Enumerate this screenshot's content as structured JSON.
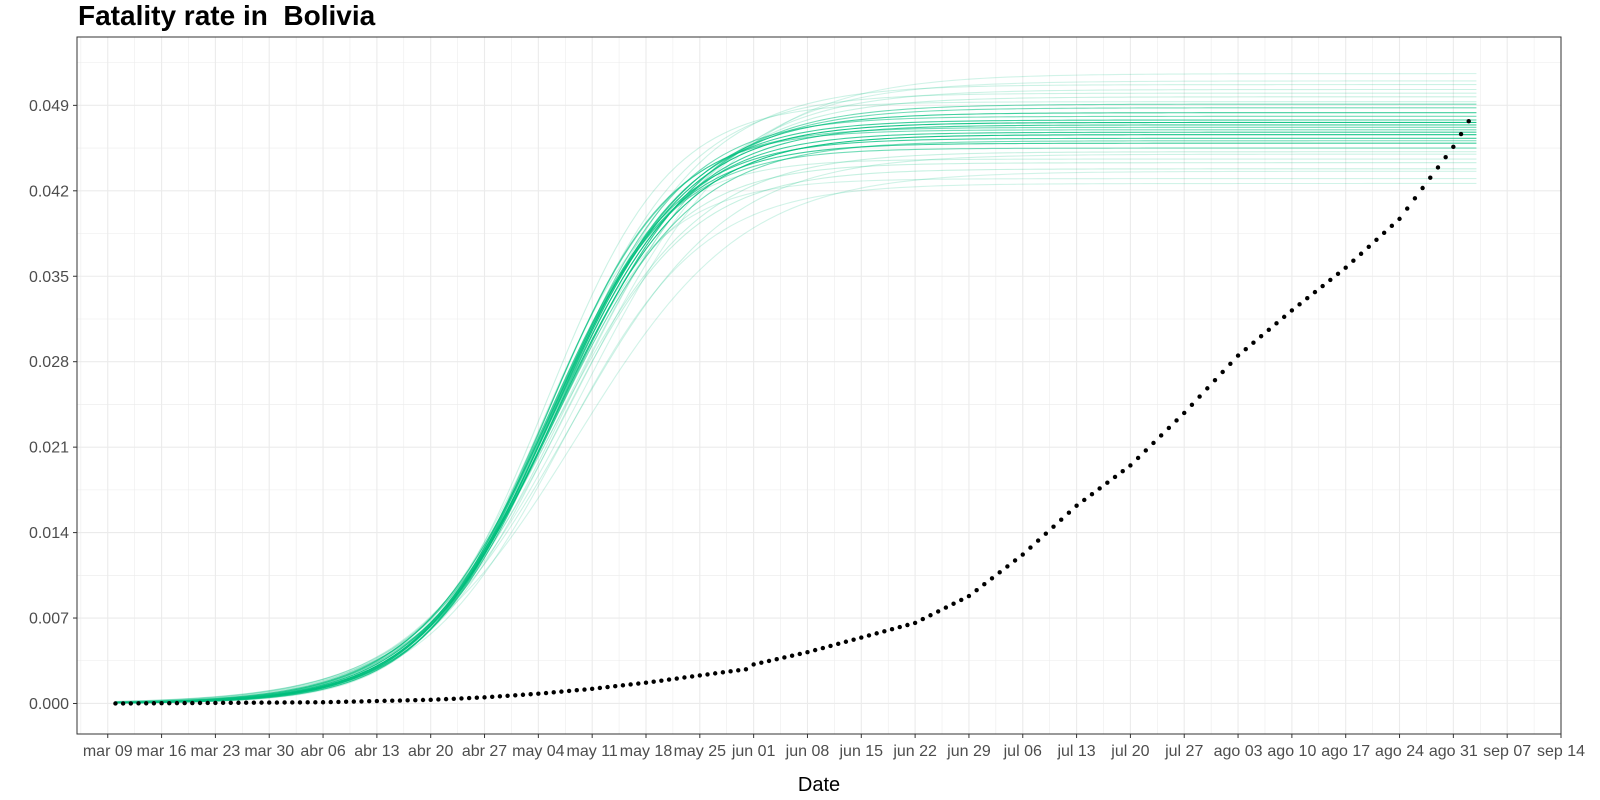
{
  "chart_data": {
    "type": "line",
    "title": "Fatality rate in  Bolivia",
    "xlabel": "Date",
    "ylabel": "",
    "x_axis": {
      "type": "date",
      "range": [
        "2020-03-05",
        "2020-09-14"
      ],
      "tick_dates": [
        "2020-03-09",
        "2020-03-16",
        "2020-03-23",
        "2020-03-30",
        "2020-04-06",
        "2020-04-13",
        "2020-04-20",
        "2020-04-27",
        "2020-05-04",
        "2020-05-11",
        "2020-05-18",
        "2020-05-25",
        "2020-06-01",
        "2020-06-08",
        "2020-06-15",
        "2020-06-22",
        "2020-06-29",
        "2020-07-06",
        "2020-07-13",
        "2020-07-20",
        "2020-07-27",
        "2020-08-03",
        "2020-08-10",
        "2020-08-17",
        "2020-08-24",
        "2020-08-31",
        "2020-09-07",
        "2020-09-14"
      ],
      "tick_labels": [
        "mar 09",
        "mar 16",
        "mar 23",
        "mar 30",
        "abr 06",
        "abr 13",
        "abr 20",
        "abr 27",
        "may 04",
        "may 11",
        "may 18",
        "may 25",
        "jun 01",
        "jun 08",
        "jun 15",
        "jun 22",
        "jun 29",
        "jul 06",
        "jul 13",
        "jul 20",
        "jul 27",
        "ago 03",
        "ago 10",
        "ago 17",
        "ago 24",
        "ago 31",
        "sep 07",
        "sep 14"
      ]
    },
    "y_axis": {
      "range": [
        -0.0025,
        0.0546
      ],
      "ticks": [
        0.0,
        0.007,
        0.014,
        0.021,
        0.028,
        0.035,
        0.042,
        0.049
      ],
      "tick_labels": [
        "0.000",
        "0.007",
        "0.014",
        "0.021",
        "0.028",
        "0.035",
        "0.042",
        "0.049"
      ]
    },
    "grid": true,
    "legend": "none",
    "colors": {
      "model": "#00BF7D",
      "observed": "#000000",
      "grid": "#ebebeb",
      "panel_border": "#333333"
    },
    "model_curves": {
      "description_type": "logistic",
      "start": "2020-03-10",
      "end": "2020-09-03",
      "curves": [
        {
          "asymptote": 0.0478,
          "midpoint": "2020-05-06",
          "scale": 8.5,
          "opacity": 0.75
        },
        {
          "asymptote": 0.0474,
          "midpoint": "2020-05-06",
          "scale": 8.8,
          "opacity": 0.75
        },
        {
          "asymptote": 0.0468,
          "midpoint": "2020-05-06",
          "scale": 8.4,
          "opacity": 0.75
        },
        {
          "asymptote": 0.0463,
          "midpoint": "2020-05-05",
          "scale": 8.3,
          "opacity": 0.75
        },
        {
          "asymptote": 0.0459,
          "midpoint": "2020-05-05",
          "scale": 8.2,
          "opacity": 0.75
        },
        {
          "asymptote": 0.0484,
          "midpoint": "2020-05-06",
          "scale": 9.0,
          "opacity": 0.75
        },
        {
          "asymptote": 0.0488,
          "midpoint": "2020-05-07",
          "scale": 9.2,
          "opacity": 0.55
        },
        {
          "asymptote": 0.0491,
          "midpoint": "2020-05-07",
          "scale": 9.4,
          "opacity": 0.55
        },
        {
          "asymptote": 0.047,
          "midpoint": "2020-05-05",
          "scale": 7.9,
          "opacity": 0.55
        },
        {
          "asymptote": 0.0455,
          "midpoint": "2020-05-05",
          "scale": 8.0,
          "opacity": 0.55
        },
        {
          "asymptote": 0.0476,
          "midpoint": "2020-05-06",
          "scale": 8.6,
          "opacity": 0.9
        },
        {
          "asymptote": 0.0466,
          "midpoint": "2020-05-06",
          "scale": 8.7,
          "opacity": 0.9
        },
        {
          "asymptote": 0.0481,
          "midpoint": "2020-05-06",
          "scale": 8.3,
          "opacity": 0.55
        },
        {
          "asymptote": 0.0461,
          "midpoint": "2020-05-06",
          "scale": 8.9,
          "opacity": 0.55
        },
        {
          "asymptote": 0.0472,
          "midpoint": "2020-05-05",
          "scale": 8.1,
          "opacity": 0.55
        },
        {
          "asymptote": 0.0443,
          "midpoint": "2020-05-05",
          "scale": 8.3,
          "opacity": 0.22
        },
        {
          "asymptote": 0.0438,
          "midpoint": "2020-05-06",
          "scale": 8.7,
          "opacity": 0.22
        },
        {
          "asymptote": 0.043,
          "midpoint": "2020-05-04",
          "scale": 7.8,
          "opacity": 0.18
        },
        {
          "asymptote": 0.0426,
          "midpoint": "2020-05-07",
          "scale": 9.1,
          "opacity": 0.18
        },
        {
          "asymptote": 0.0497,
          "midpoint": "2020-05-08",
          "scale": 9.6,
          "opacity": 0.22
        },
        {
          "asymptote": 0.0503,
          "midpoint": "2020-05-08",
          "scale": 10.0,
          "opacity": 0.2
        },
        {
          "asymptote": 0.051,
          "midpoint": "2020-05-09",
          "scale": 10.3,
          "opacity": 0.18
        },
        {
          "asymptote": 0.0516,
          "midpoint": "2020-05-10",
          "scale": 10.6,
          "opacity": 0.18
        },
        {
          "asymptote": 0.0507,
          "midpoint": "2020-05-07",
          "scale": 9.3,
          "opacity": 0.2
        },
        {
          "asymptote": 0.045,
          "midpoint": "2020-05-08",
          "scale": 10.2,
          "opacity": 0.2
        },
        {
          "asymptote": 0.0446,
          "midpoint": "2020-05-04",
          "scale": 7.6,
          "opacity": 0.2
        },
        {
          "asymptote": 0.0493,
          "midpoint": "2020-05-05",
          "scale": 8.0,
          "opacity": 0.2
        },
        {
          "asymptote": 0.0436,
          "midpoint": "2020-05-09",
          "scale": 10.8,
          "opacity": 0.18
        },
        {
          "asymptote": 0.05,
          "midpoint": "2020-05-06",
          "scale": 8.8,
          "opacity": 0.2
        },
        {
          "asymptote": 0.0452,
          "midpoint": "2020-05-06",
          "scale": 9.5,
          "opacity": 0.22
        }
      ]
    },
    "observed": {
      "start": "2020-03-10",
      "end": "2020-09-02",
      "anchors": [
        [
          "2020-03-10",
          0.0
        ],
        [
          "2020-04-06",
          0.0001
        ],
        [
          "2020-04-20",
          0.0003
        ],
        [
          "2020-04-27",
          0.0005
        ],
        [
          "2020-05-04",
          0.0008
        ],
        [
          "2020-05-11",
          0.0012
        ],
        [
          "2020-05-18",
          0.0017
        ],
        [
          "2020-05-25",
          0.0023
        ],
        [
          "2020-05-31",
          0.0028
        ],
        [
          "2020-06-01",
          0.0032
        ],
        [
          "2020-06-08",
          0.0042
        ],
        [
          "2020-06-15",
          0.0054
        ],
        [
          "2020-06-22",
          0.0066
        ],
        [
          "2020-06-29",
          0.0088
        ],
        [
          "2020-07-06",
          0.0122
        ],
        [
          "2020-07-13",
          0.0162
        ],
        [
          "2020-07-20",
          0.0195
        ],
        [
          "2020-07-27",
          0.0238
        ],
        [
          "2020-08-03",
          0.0285
        ],
        [
          "2020-08-10",
          0.0322
        ],
        [
          "2020-08-17",
          0.0357
        ],
        [
          "2020-08-24",
          0.0397
        ],
        [
          "2020-08-31",
          0.0456
        ],
        [
          "2020-09-02",
          0.0477
        ]
      ]
    }
  }
}
